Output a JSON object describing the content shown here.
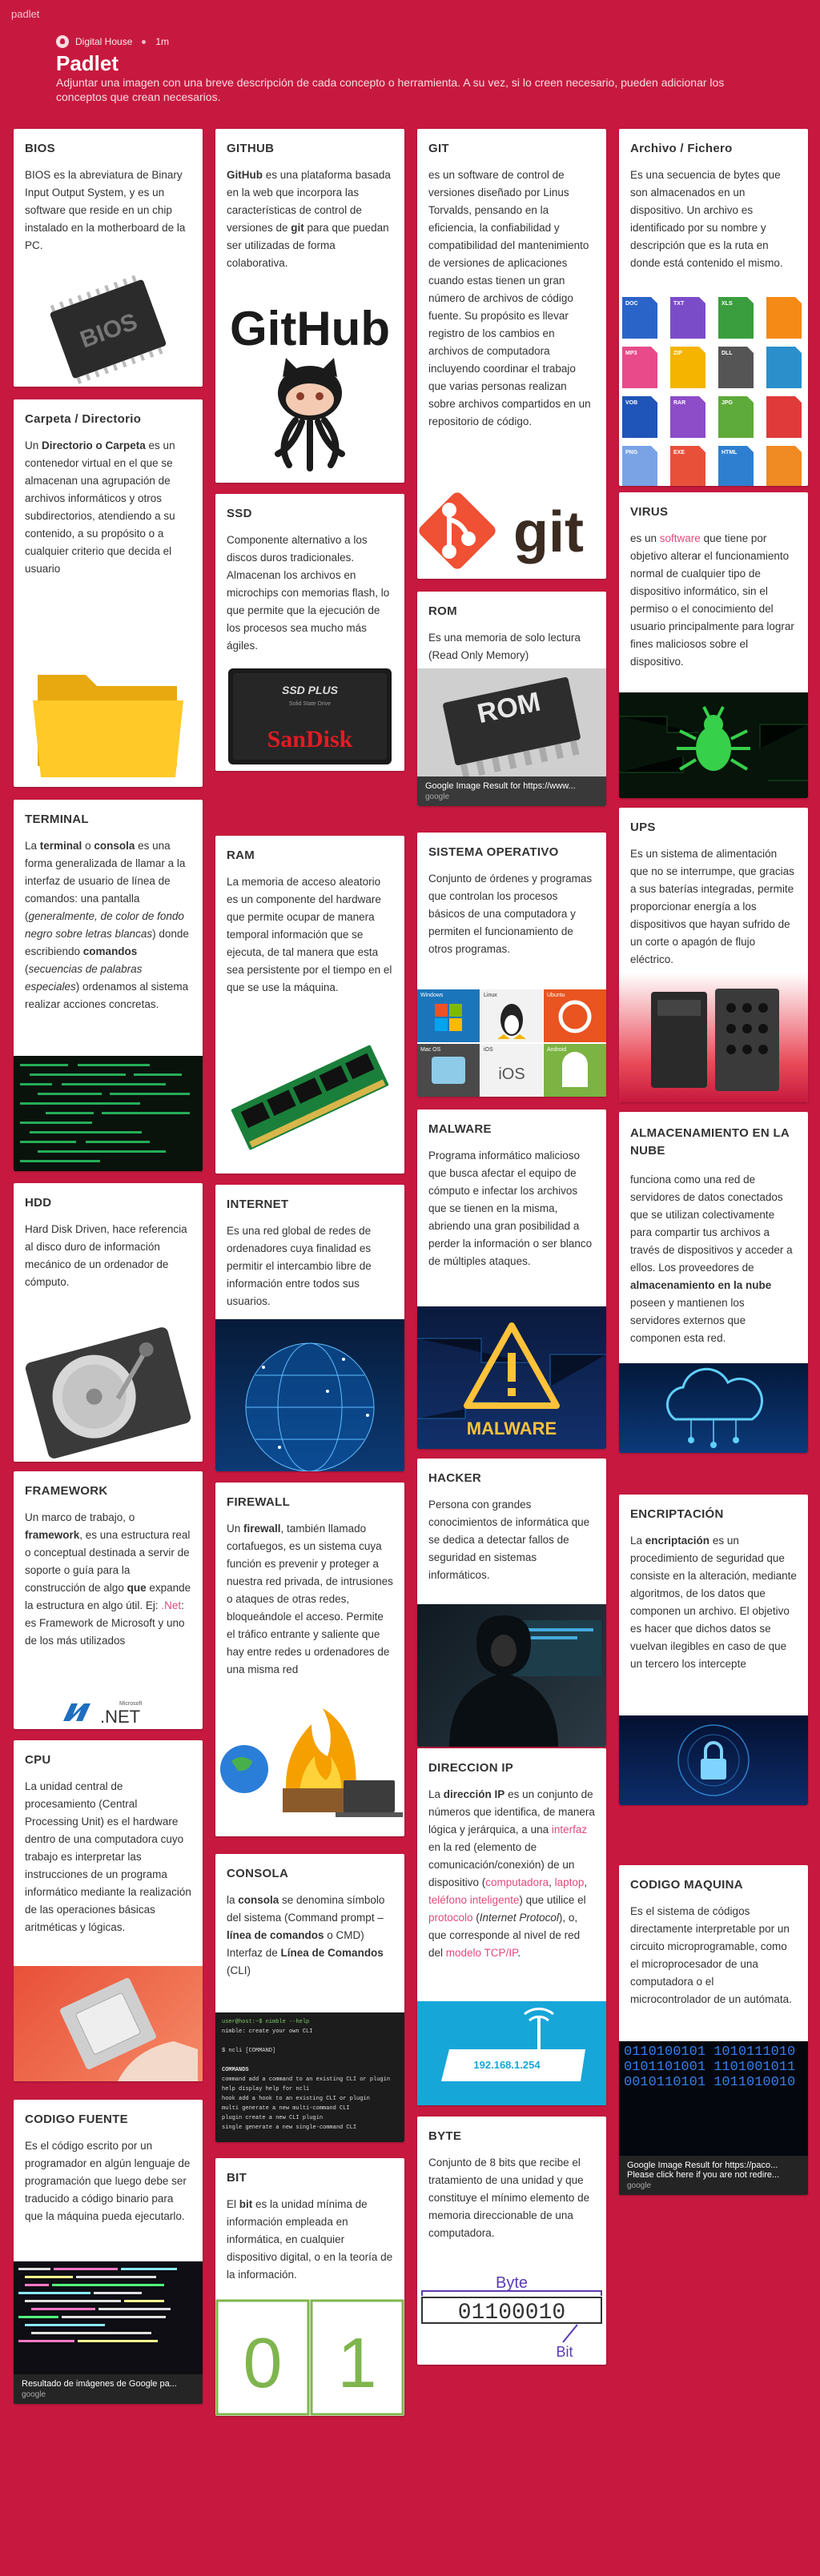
{
  "app": {
    "brand": "padlet"
  },
  "header": {
    "author": "Digital House",
    "time": "1m",
    "title": "Padlet",
    "description": "Adjuntar una imagen con una breve descripción de cada concepto o herramienta. A su vez, si lo creen necesario, pueden adicionar los conceptos que crean necesarios."
  },
  "cards": {
    "bios": {
      "title": "BIOS",
      "body": "BIOS es la abreviatura de Binary Input Output System, y es un software que reside en un chip instalado en la motherboard de la PC.",
      "img_text": "BIOS"
    },
    "carpeta": {
      "title": "Carpeta / Directorio",
      "p1": "Un ",
      "b1": "Directorio o Carpeta",
      "p2": " es un contenedor virtual en el que se almacenan una agrupación de archivos informáticos y otros subdirectorios, atendiendo a su contenido, a su propósito o a cualquier criterio que decida el usuario"
    },
    "terminal": {
      "title": "TERMINAL",
      "p1": "La ",
      "b1": "terminal",
      "p2": " o ",
      "b2": "consola",
      "p3": " es una forma generalizada de llamar a la interfaz de usuario de línea de comandos: una pantalla (",
      "i1": "generalmente, de color de fondo negro sobre letras blancas",
      "p4": ") donde escribiendo ",
      "b3": "comandos",
      "p5": " (",
      "i2": "secuencias de palabras especiales",
      "p6": ") ordenamos al sistema realizar acciones concretas."
    },
    "hdd": {
      "title": "HDD",
      "body": "Hard Disk Driven, hace referencia al disco duro de información mecánico de un ordenador de cómputo."
    },
    "framework": {
      "title": "FRAMEWORK",
      "p1": "Un marco de trabajo, o ",
      "b1": "framework",
      "p2": ", es una estructura real o conceptual destinada a servir de soporte o guía para la construcción de algo ",
      "b2": "que",
      "p3": " expande la estructura en algo útil. Ej: ",
      "l1": ".Net",
      "p4": ": es Framework de Microsoft y uno de los más utilizados",
      "img_ms": "Microsoft",
      "img_net": ".NET"
    },
    "cpu": {
      "title": "CPU",
      "body": "La unidad central de procesamiento (Central Processing Unit) es el hardware dentro de una computadora cuyo trabajo es interpretar las instrucciones de un programa informático mediante la realización de las operaciones básicas aritméticas y lógicas."
    },
    "fuente": {
      "title": "CODIGO FUENTE",
      "body": "Es el código escrito por un programador en algún lenguaje de programación que luego debe ser traducido a código binario para que la máquina pueda ejecutarlo.",
      "cap": "Resultado de imágenes de Google pa...",
      "cap_src": "google"
    },
    "github": {
      "title": "GITHUB",
      "b1": "GitHub",
      "p1": " es una plataforma basada en la web que incorpora las características de control de versiones de ",
      "b2": "git",
      "p2": " para que puedan ser utilizadas de forma colaborativa.",
      "img_text": "GitHub"
    },
    "ssd": {
      "title": "SSD",
      "body": "Componente alternativo a los discos duros tradicionales. Almacenan los archivos en microchips con memorias flash, lo que permite que la ejecución de los procesos sea mucho más ágiles.",
      "img_t1": "SSD PLUS",
      "img_t2": "Solid State Drive",
      "img_brand": "SanDisk"
    },
    "ram": {
      "title": "RAM",
      "body": "La memoria de acceso aleatorio es un componente del hardware que permite ocupar de manera temporal información que se ejecuta, de tal manera que esta sea persistente por el tiempo en el que se use la máquina."
    },
    "internet": {
      "title": "INTERNET",
      "body": "Es una red global de redes de ordenadores cuya finalidad es permitir el intercambio libre de información entre todos sus usuarios."
    },
    "firewall": {
      "title": "FIREWALL",
      "p1": "Un ",
      "b1": "firewall",
      "p2": ", también llamado cortafuegos, es un sistema cuya función es prevenir y proteger a nuestra red privada, de intrusiones o ataques de otras redes, bloqueándole el acceso. Permite el tráfico entrante y saliente que hay entre redes u ordenadores de una misma red"
    },
    "consola": {
      "title": "CONSOLA",
      "p1": "la ",
      "b1": "consola",
      "p2": " se denomina símbolo del sistema (Command prompt – ",
      "b2": "línea de comandos",
      "p3": " o CMD) Interfaz de ",
      "b3": "Línea de Comandos",
      "p4": " (CLI)",
      "t1": "user@host:~$ nimble --help",
      "t2": "nimble: create your own CLI",
      "t3": "$ ncli [COMMAND]",
      "t4": "COMMANDS",
      "t5": "command   add a command to an existing CLI or plugin",
      "t6": "help      display help for ncli",
      "t7": "hook      add a hook to an existing CLI or plugin",
      "t8": "multi     generate a new multi-command CLI",
      "t9": "plugin    create a new CLI plugin",
      "t10": "single    generate a new single-command CLI"
    },
    "bit": {
      "title": "BIT",
      "p1": "El ",
      "b1": "bit",
      "p2": " es la unidad mínima de información empleada en informática, en cualquier dispositivo digital, o en la teoría de la información.",
      "d0": "0",
      "d1": "1"
    },
    "git": {
      "title": "GIT",
      "body": "es un software de control de versiones diseñado por Linus Torvalds, pensando en la eficiencia, la confiabilidad y compatibilidad del mantenimiento de versiones de aplicaciones cuando estas tienen un gran número de archivos de código fuente. Su propósito es llevar registro de los cambios en archivos de computadora incluyendo coordinar el trabajo que varias personas realizan sobre archivos compartidos en un repositorio de código.",
      "img_text": "git"
    },
    "rom": {
      "title": "ROM",
      "body": "Es una memoria de solo lectura (Read Only Memory)",
      "img_text": "ROM",
      "cap": "Google Image Result for https://www...",
      "cap_src": "google"
    },
    "so": {
      "title": "SISTEMA OPERATIVO",
      "body": "Conjunto de órdenes y programas que controlan los procesos básicos de una computadora y permiten el funcionamiento de otros programas.",
      "l1": "Windows",
      "l2": "Linux",
      "l3": "Ubuntu",
      "l4": "Mac OS",
      "l5": "iOS",
      "l6": "Android"
    },
    "malware": {
      "title": "MALWARE",
      "body": "Programa informático malicioso que busca afectar el equipo de cómputo e infectar los archivos que se tienen en la misma, abriendo una gran posibilidad a perder la información o ser blanco de múltiples ataques.",
      "img_text": "MALWARE"
    },
    "hacker": {
      "title": "HACKER",
      "body": "Persona con grandes conocimientos de informática que se dedica a detectar fallos de seguridad en sistemas informáticos."
    },
    "ip": {
      "title": "DIRECCION IP",
      "p1": "La ",
      "b1": "dirección IP",
      "p2": " es un conjunto de números que identifica, de manera lógica y jerárquica, a una ",
      "l1": "interfaz",
      "p3": " en la red (elemento de comunicación/conexión) de un dispositivo (",
      "l2": "computadora",
      "p4": ", ",
      "l3": "laptop",
      "p5": ", ",
      "l4": "teléfono inteligente",
      "p6": ") que utilice el ",
      "l5": "protocolo",
      "p7": " (",
      "i1": "Internet Protocol",
      "p8": "), o, que corresponde al nivel de red del ",
      "l6": "modelo TCP/IP",
      "p9": ".",
      "img_text": "192.168.1.254"
    },
    "byte": {
      "title": "BYTE",
      "body": "Conjunto de 8 bits que recibe el tratamiento de una unidad y que constituye el mínimo elemento de memoria direccionable de una computadora.",
      "img_byte": "Byte",
      "img_bits": "01100010",
      "img_bit": "Bit"
    },
    "archivo": {
      "title": "Archivo / Fichero",
      "body": "Es una secuencia de bytes que son almacenados en un dispositivo. Un archivo es identificado por su nombre y descripción que es la ruta en donde está contenido el mismo.",
      "f1": "DOC",
      "f2": "TXT",
      "f3": "XLS",
      "f4": "MP3",
      "f5": "ZIP",
      "f6": "DLL",
      "f7": "VOB",
      "f8": "RAR",
      "f9": "JPG",
      "f10": "PNG",
      "f11": "EXE",
      "f12": "HTML"
    },
    "virus": {
      "title": "VIRUS",
      "p1": "es un ",
      "l1": "software",
      "p2": " que tiene por objetivo alterar el funcionamiento normal de cualquier tipo de dispositivo informático, sin el permiso o el conocimiento del usuario principalmente para lograr fines maliciosos sobre el dispositivo."
    },
    "ups": {
      "title": "UPS",
      "body": "Es un sistema de alimentación que no se interrumpe, que gracias a sus baterías integradas, permite proporcionar energía a los dispositivos que hayan sufrido de un corte o apagón de flujo eléctrico."
    },
    "nube": {
      "title": "ALMACENAMIENTO EN LA NUBE",
      "p1": "funciona como una red de servidores de datos conectados que se utilizan colectivamente para compartir tus archivos a través de dispositivos y acceder a ellos. Los proveedores de ",
      "b1": "almacenamiento en la nube",
      "p2": " poseen y mantienen los servidores externos que componen esta red."
    },
    "encriptacion": {
      "title": "ENCRIPTACIÓN",
      "p1": "La ",
      "b1": "encriptación",
      "p2": " es un procedimiento de seguridad que consiste en la alteración, mediante algoritmos, de los datos que componen un archivo. El objetivo es hacer que dichos datos se vuelvan ilegibles en caso de que un tercero los intercepte"
    },
    "maquina": {
      "title": "CODIGO MAQUINA",
      "body": "Es el sistema de códigos directamente interpretable por un circuito microprogramable, como el microprocesador de una computadora o el microcontrolador de un autómata.",
      "img_bits": "0110100101 1010111010 0101101001 1101001011 0010110101 1011010010",
      "cap": "Google Image Result for https://paco...",
      "cap2": "Please click here if you are not redire...",
      "cap_src": "google"
    }
  }
}
